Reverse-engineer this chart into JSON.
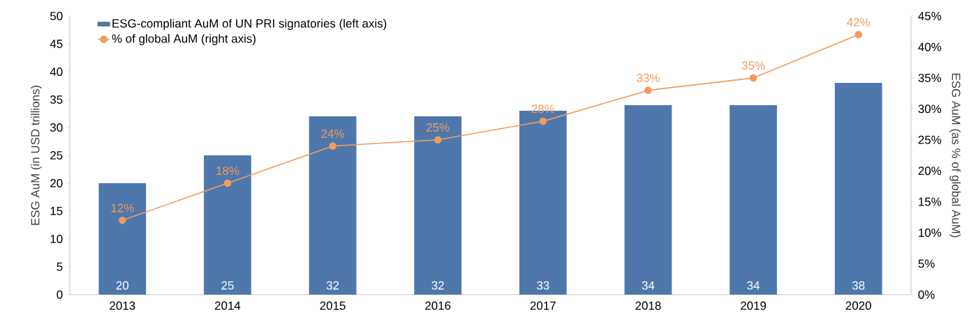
{
  "chart_data": {
    "type": "bar",
    "categories": [
      "2013",
      "2014",
      "2015",
      "2016",
      "2017",
      "2018",
      "2019",
      "2020"
    ],
    "ylabel": "ESG AuM (in USD trillions)",
    "y2label": "ESG AuM (as % of global AuM)",
    "series": [
      {
        "name": "ESG-compliant AuM of UN PRI signatories (left axis)",
        "color": "#4e78ac",
        "values": [
          20,
          25,
          32,
          32,
          33,
          34,
          34,
          38
        ],
        "value_labels": [
          "20",
          "25",
          "32",
          "32",
          "33",
          "34",
          "34",
          "38"
        ]
      },
      {
        "name": "% of global AuM (right axis)",
        "type": "line",
        "axis": "y2",
        "color": "#f39a5c",
        "marker": "circle",
        "values": [
          12,
          18,
          24,
          25,
          28,
          33,
          35,
          42
        ],
        "value_labels": [
          "12%",
          "18%",
          "24%",
          "25%",
          "28%",
          "33%",
          "35%",
          "42%"
        ]
      }
    ],
    "ylim": [
      0,
      50
    ],
    "yticks": [
      0,
      5,
      10,
      15,
      20,
      25,
      30,
      35,
      40,
      45,
      50
    ],
    "y2lim": [
      0,
      45
    ],
    "y2ticks": [
      {
        "value": 0,
        "label": "0%"
      },
      {
        "value": 5,
        "label": "5%"
      },
      {
        "value": 10,
        "label": "10%"
      },
      {
        "value": 15,
        "label": "15%"
      },
      {
        "value": 20,
        "label": "20%"
      },
      {
        "value": 25,
        "label": "25%"
      },
      {
        "value": 30,
        "label": "30%"
      },
      {
        "value": 35,
        "label": "35%"
      },
      {
        "value": 40,
        "label": "40%"
      },
      {
        "value": 45,
        "label": "45%"
      }
    ],
    "grid": false,
    "legend": "top left"
  }
}
